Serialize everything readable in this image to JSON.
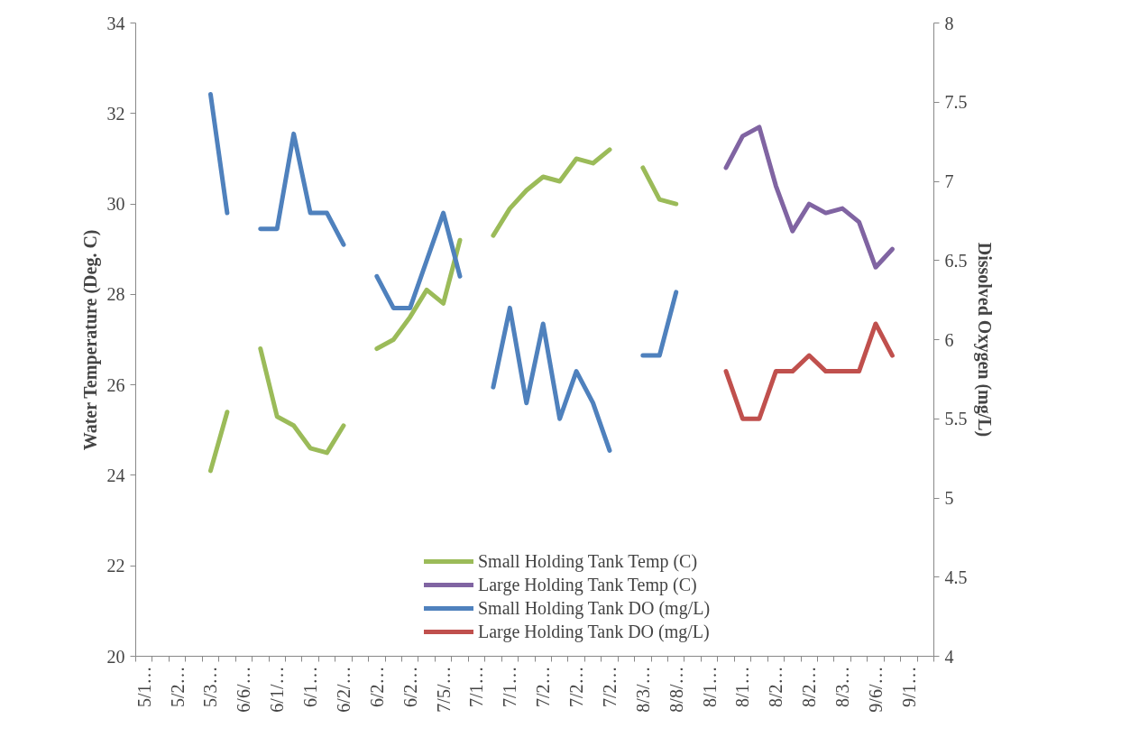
{
  "chart_data": {
    "type": "line",
    "ylabel": "Water Temperature (Deg. C)",
    "y2label": "Dissolved Oxygen (mg/L)",
    "categories": [
      "5/1…",
      null,
      "5/2…",
      null,
      "5/3…",
      null,
      "6/6/…",
      null,
      "6/1/…",
      null,
      "6/1…",
      null,
      "6/2/…",
      null,
      "6/2…",
      null,
      "6/2…",
      null,
      "7/5/…",
      null,
      "7/1…",
      null,
      "7/1…",
      null,
      "7/2…",
      null,
      "7/2…",
      null,
      "7/2…",
      null,
      "8/3/…",
      null,
      "8/8/…",
      null,
      "8/1…",
      null,
      "8/1…",
      null,
      "8/2…",
      null,
      "8/2…",
      null,
      "8/3…",
      null,
      "9/6/…",
      null,
      "9/1…",
      null
    ],
    "ylim": [
      20,
      34
    ],
    "yticks": [
      20,
      22,
      24,
      26,
      28,
      30,
      32,
      34
    ],
    "y2lim": [
      4,
      8
    ],
    "y2ticks": [
      4,
      4.5,
      5,
      5.5,
      6,
      6.5,
      7,
      7.5,
      8
    ],
    "legend": "bottom right",
    "grid": false,
    "line_style": "solid",
    "marker": "none",
    "series": [
      {
        "name": "Small Holding Tank Temp (C)",
        "color": "#9bbb59",
        "values": [
          null,
          null,
          null,
          null,
          24.1,
          25.4,
          null,
          26.8,
          25.3,
          25.1,
          24.6,
          24.5,
          25.1,
          null,
          26.8,
          27.0,
          27.5,
          28.1,
          27.8,
          29.2,
          null,
          29.3,
          29.9,
          30.3,
          30.6,
          30.5,
          31.0,
          30.9,
          31.2,
          null,
          30.8,
          30.1,
          30.0,
          null,
          null,
          null,
          null,
          null,
          null,
          null,
          null,
          null,
          null,
          null,
          null,
          null,
          null,
          null
        ]
      },
      {
        "name": "Large Holding Tank Temp (C)",
        "color": "#8064a2",
        "values": [
          null,
          null,
          null,
          null,
          null,
          null,
          null,
          null,
          null,
          null,
          null,
          null,
          null,
          null,
          null,
          null,
          null,
          null,
          null,
          null,
          null,
          null,
          null,
          null,
          null,
          null,
          null,
          null,
          null,
          null,
          null,
          null,
          null,
          null,
          null,
          30.8,
          31.5,
          31.7,
          30.4,
          29.4,
          30.0,
          29.8,
          29.9,
          29.6,
          28.6,
          29.0,
          null,
          null
        ]
      },
      {
        "name": "Small Holding Tank DO (mg/L)",
        "color": "#4f81bd",
        "axis": "y2",
        "values": [
          null,
          null,
          null,
          null,
          7.55,
          6.8,
          null,
          6.7,
          6.7,
          7.3,
          6.8,
          6.8,
          6.6,
          null,
          6.4,
          6.2,
          6.2,
          6.5,
          6.8,
          6.4,
          null,
          5.7,
          6.2,
          5.6,
          6.1,
          5.5,
          5.8,
          5.6,
          5.3,
          null,
          5.9,
          5.9,
          6.3,
          null,
          null,
          null,
          null,
          null,
          null,
          null,
          null,
          null,
          null,
          null,
          null,
          null,
          null,
          null
        ]
      },
      {
        "name": "Large Holding Tank DO (mg/L)",
        "color": "#c0504d",
        "axis": "y2",
        "values": [
          null,
          null,
          null,
          null,
          null,
          null,
          null,
          null,
          null,
          null,
          null,
          null,
          null,
          null,
          null,
          null,
          null,
          null,
          null,
          null,
          null,
          null,
          null,
          null,
          null,
          null,
          null,
          null,
          null,
          null,
          null,
          null,
          null,
          null,
          null,
          5.8,
          5.5,
          5.5,
          5.8,
          5.8,
          5.9,
          5.8,
          5.8,
          5.8,
          6.1,
          5.9,
          null,
          null
        ]
      }
    ]
  }
}
